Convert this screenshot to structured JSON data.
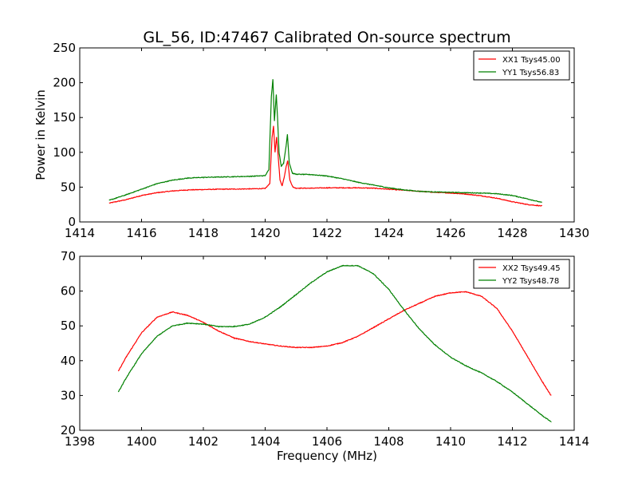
{
  "title": "GL_56, ID:47467 Calibrated On-source spectrum",
  "chart_data": [
    {
      "type": "line",
      "title": "GL_56, ID:47467 Calibrated On-source spectrum",
      "xlabel": "",
      "ylabel": "Power in Kelvin",
      "xlim": [
        1414,
        1430
      ],
      "ylim": [
        0,
        250
      ],
      "xticks": [
        "1414",
        "1416",
        "1418",
        "1420",
        "1422",
        "1424",
        "1426",
        "1428",
        "1430"
      ],
      "yticks": [
        "0",
        "50",
        "100",
        "150",
        "200",
        "250"
      ],
      "legend_position": "top-right",
      "grid": false,
      "series": [
        {
          "name": "XX1 Tsys45.00",
          "color": "#ff0000",
          "x": [
            1414.95,
            1415.5,
            1416.0,
            1416.5,
            1417.0,
            1417.5,
            1418.0,
            1418.5,
            1419.0,
            1419.5,
            1420.0,
            1420.15,
            1420.22,
            1420.27,
            1420.32,
            1420.37,
            1420.42,
            1420.48,
            1420.55,
            1420.62,
            1420.68,
            1420.73,
            1420.8,
            1420.9,
            1421.0,
            1421.5,
            1422.0,
            1422.5,
            1423.0,
            1423.5,
            1424.0,
            1424.5,
            1425.0,
            1425.5,
            1426.0,
            1426.5,
            1427.0,
            1427.5,
            1428.0,
            1428.5,
            1428.95
          ],
          "y": [
            27,
            32,
            38,
            42,
            44.5,
            46,
            46.5,
            47,
            47.2,
            47.5,
            48,
            55,
            120,
            138,
            100,
            122,
            95,
            60,
            52,
            65,
            80,
            88,
            60,
            50,
            48.5,
            48.5,
            49,
            49,
            49,
            48.5,
            47,
            45.5,
            44,
            42.5,
            41.5,
            40,
            37.5,
            34,
            29,
            25,
            23
          ]
        },
        {
          "name": "YY1 Tsys56.83",
          "color": "#008000",
          "x": [
            1414.95,
            1415.5,
            1416.0,
            1416.5,
            1417.0,
            1417.5,
            1418.0,
            1418.5,
            1419.0,
            1419.5,
            1420.0,
            1420.12,
            1420.2,
            1420.25,
            1420.3,
            1420.36,
            1420.4,
            1420.45,
            1420.52,
            1420.6,
            1420.68,
            1420.72,
            1420.78,
            1420.88,
            1421.0,
            1421.5,
            1422.0,
            1422.5,
            1423.0,
            1423.5,
            1424.0,
            1424.5,
            1425.0,
            1425.5,
            1426.0,
            1426.5,
            1427.0,
            1427.5,
            1428.0,
            1428.5,
            1428.95
          ],
          "y": [
            31,
            39,
            47,
            55,
            60,
            63,
            64,
            64.5,
            65,
            65.5,
            66.5,
            75,
            180,
            205,
            145,
            183,
            150,
            100,
            80,
            85,
            110,
            126,
            85,
            70,
            68.5,
            68,
            66,
            62,
            57,
            53,
            49,
            46,
            44,
            43,
            42.5,
            42,
            41.5,
            40.5,
            38,
            33,
            28
          ]
        }
      ]
    },
    {
      "type": "line",
      "title": "",
      "xlabel": "Frequency (MHz)",
      "ylabel": "",
      "xlim": [
        1398,
        1414
      ],
      "ylim": [
        20,
        70
      ],
      "xticks": [
        "1398",
        "1400",
        "1402",
        "1404",
        "1406",
        "1408",
        "1410",
        "1412",
        "1414"
      ],
      "yticks": [
        "20",
        "30",
        "40",
        "50",
        "60",
        "70"
      ],
      "legend_position": "top-right",
      "grid": false,
      "series": [
        {
          "name": "XX2 Tsys49.45",
          "color": "#ff0000",
          "x": [
            1399.25,
            1399.5,
            1400.0,
            1400.5,
            1401.0,
            1401.5,
            1402.0,
            1402.5,
            1403.0,
            1403.5,
            1404.0,
            1404.5,
            1405.0,
            1405.5,
            1406.0,
            1406.5,
            1407.0,
            1407.5,
            1408.0,
            1408.5,
            1409.0,
            1409.5,
            1410.0,
            1410.5,
            1411.0,
            1411.5,
            1412.0,
            1412.5,
            1413.0,
            1413.25
          ],
          "y": [
            37,
            41,
            48,
            52.5,
            54,
            53,
            51,
            48.5,
            46.5,
            45.5,
            44.8,
            44.2,
            43.8,
            43.8,
            44.2,
            45.2,
            47,
            49.5,
            52,
            54.5,
            56.5,
            58.5,
            59.5,
            59.8,
            58.5,
            55,
            48.5,
            41,
            33.5,
            30
          ]
        },
        {
          "name": "YY2 Tsys48.78",
          "color": "#008000",
          "x": [
            1399.25,
            1399.5,
            1400.0,
            1400.5,
            1401.0,
            1401.5,
            1402.0,
            1402.5,
            1403.0,
            1403.5,
            1404.0,
            1404.5,
            1405.0,
            1405.5,
            1406.0,
            1406.5,
            1407.0,
            1407.5,
            1408.0,
            1408.5,
            1409.0,
            1409.5,
            1410.0,
            1410.5,
            1411.0,
            1411.5,
            1412.0,
            1412.5,
            1413.0,
            1413.25
          ],
          "y": [
            31,
            35,
            42,
            47,
            50,
            50.8,
            50.5,
            49.8,
            49.8,
            50.5,
            52.5,
            55.5,
            59,
            62.5,
            65.5,
            67.3,
            67.3,
            65,
            60.5,
            54.5,
            49,
            44.5,
            41,
            38.5,
            36.5,
            34,
            31,
            27.5,
            24,
            22.5
          ]
        }
      ]
    }
  ]
}
